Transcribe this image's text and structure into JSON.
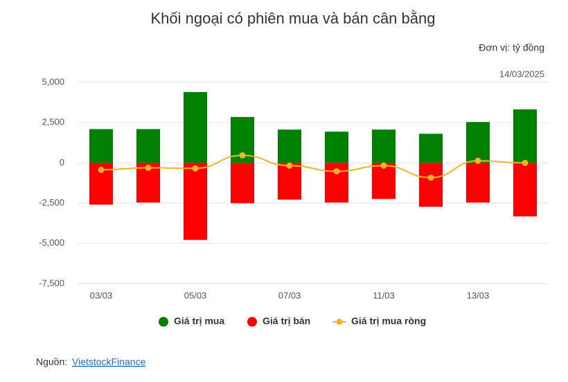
{
  "chart_data": {
    "type": "bar_line",
    "title": "Khối ngoại có phiên mua và bán cân bằng",
    "unit": "Đơn vị: tỷ đồng",
    "date_label": "14/03/2025",
    "source_label": "Nguồn:",
    "source_name": "VietstockFinance",
    "categories": [
      "03/03",
      null,
      "05/03",
      null,
      "07/03",
      null,
      "11/03",
      null,
      "13/03",
      null
    ],
    "series": [
      {
        "name": "Giá trị mua",
        "color": "#008000",
        "kind": "bar",
        "values": [
          2100,
          2100,
          4400,
          2850,
          2070,
          1940,
          2070,
          1810,
          2540,
          3320
        ]
      },
      {
        "name": "Giá trị bán",
        "color": "#ff0000",
        "kind": "bar",
        "values": [
          -2590,
          -2460,
          -4780,
          -2500,
          -2280,
          -2460,
          -2240,
          -2720,
          -2460,
          -3320
        ]
      },
      {
        "name": "Giá trị mua ròng",
        "color": "#f0b429",
        "kind": "line",
        "values": [
          -430,
          -300,
          -340,
          470,
          -170,
          -520,
          -170,
          -910,
          130,
          0
        ]
      }
    ],
    "ylim": [
      -7500,
      5000
    ],
    "yticks": [
      {
        "value": -7500,
        "label": "-7,500"
      },
      {
        "value": -5000,
        "label": "-5,000"
      },
      {
        "value": -2500,
        "label": "-2,500"
      },
      0,
      {
        "value": 2500,
        "label": "2,500"
      },
      {
        "value": 5000,
        "label": "5,000"
      }
    ],
    "grid": true
  }
}
